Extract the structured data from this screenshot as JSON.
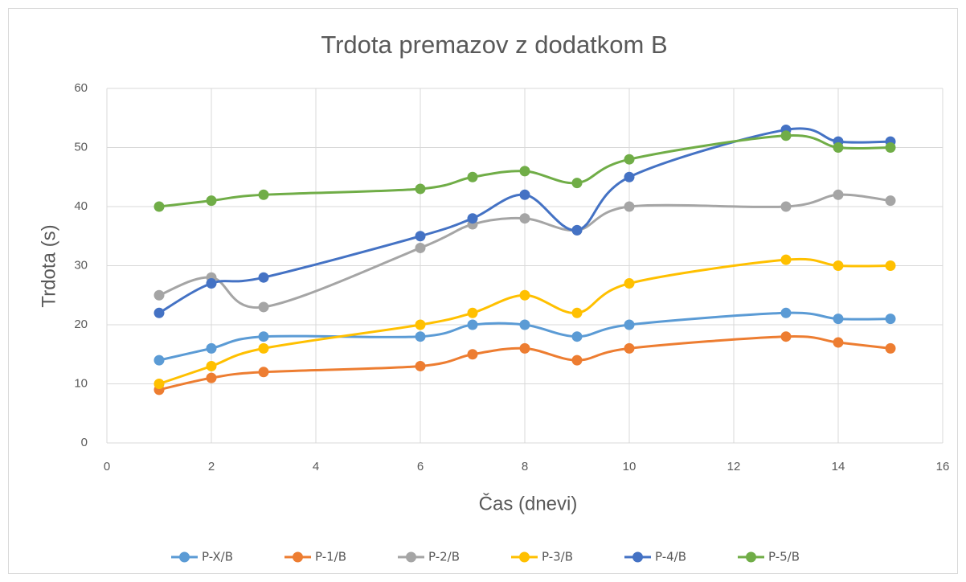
{
  "chart_data": {
    "type": "line",
    "smooth": true,
    "title": "Trdota premazov z dodatkom B",
    "x_label": "Čas (dnevi)",
    "y_label": "Trdota (s)",
    "x": [
      1,
      2,
      3,
      6,
      7,
      8,
      9,
      10,
      13,
      14,
      15
    ],
    "series": [
      {
        "name": "P-X/B",
        "color": "#5b9bd5",
        "values": [
          14,
          16,
          18,
          18,
          20,
          20,
          18,
          20,
          22,
          21,
          21
        ]
      },
      {
        "name": "P-1/B",
        "color": "#ed7d31",
        "values": [
          9,
          11,
          12,
          13,
          15,
          16,
          14,
          16,
          18,
          17,
          16
        ]
      },
      {
        "name": "P-2/B",
        "color": "#a5a5a5",
        "values": [
          25,
          28,
          23,
          33,
          37,
          38,
          36,
          40,
          40,
          42,
          41
        ]
      },
      {
        "name": "P-3/B",
        "color": "#ffc000",
        "values": [
          10,
          13,
          16,
          20,
          22,
          25,
          22,
          27,
          31,
          30,
          30
        ]
      },
      {
        "name": "P-4/B",
        "color": "#4472c4",
        "values": [
          22,
          27,
          28,
          35,
          38,
          42,
          36,
          45,
          53,
          51,
          51
        ]
      },
      {
        "name": "P-5/B",
        "color": "#70ad47",
        "values": [
          40,
          41,
          42,
          43,
          45,
          46,
          44,
          48,
          52,
          50,
          50
        ]
      }
    ],
    "xlim": [
      0,
      16
    ],
    "xticks": [
      0,
      2,
      4,
      6,
      8,
      10,
      12,
      14,
      16
    ],
    "ylim": [
      0,
      60
    ],
    "yticks": [
      0,
      10,
      20,
      30,
      40,
      50,
      60
    ],
    "grid": true,
    "legend": "bottom"
  }
}
